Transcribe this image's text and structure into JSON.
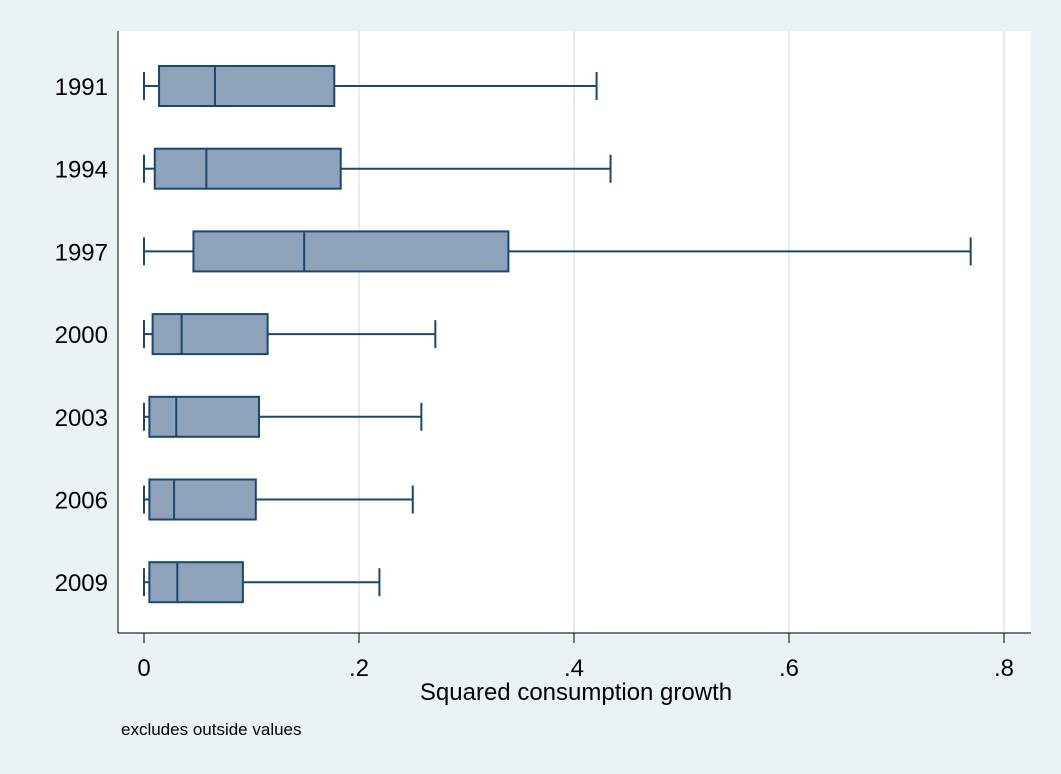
{
  "chart_data": {
    "type": "boxplot",
    "orientation": "horizontal",
    "xlabel": "Squared consumption growth",
    "note": "excludes outside values",
    "xlim": [
      0,
      0.8
    ],
    "x_ticks": [
      0,
      0.2,
      0.4,
      0.6,
      0.8
    ],
    "x_tick_labels": [
      "0",
      ".2",
      ".4",
      ".6",
      ".8"
    ],
    "grid": "vertical",
    "categories": [
      "1991",
      "1994",
      "1997",
      "2000",
      "2003",
      "2006",
      "2009"
    ],
    "boxes": [
      {
        "label": "1991",
        "whisker_low": 0.0,
        "q1": 0.014,
        "median": 0.066,
        "q3": 0.177,
        "whisker_high": 0.421
      },
      {
        "label": "1994",
        "whisker_low": 0.0,
        "q1": 0.01,
        "median": 0.058,
        "q3": 0.183,
        "whisker_high": 0.434
      },
      {
        "label": "1997",
        "whisker_low": 0.0,
        "q1": 0.046,
        "median": 0.149,
        "q3": 0.339,
        "whisker_high": 0.769
      },
      {
        "label": "2000",
        "whisker_low": 0.0,
        "q1": 0.008,
        "median": 0.035,
        "q3": 0.115,
        "whisker_high": 0.271
      },
      {
        "label": "2003",
        "whisker_low": 0.0,
        "q1": 0.005,
        "median": 0.03,
        "q3": 0.107,
        "whisker_high": 0.258
      },
      {
        "label": "2006",
        "whisker_low": 0.0,
        "q1": 0.005,
        "median": 0.028,
        "q3": 0.104,
        "whisker_high": 0.25
      },
      {
        "label": "2009",
        "whisker_low": 0.0,
        "q1": 0.005,
        "median": 0.031,
        "q3": 0.092,
        "whisker_high": 0.219
      }
    ],
    "colors": {
      "background": "#eaf2f3",
      "plot_area": "#ffffff",
      "gridline": "#e4eef0",
      "box_fill": "#8ea3ba",
      "box_stroke": "#1a476f"
    }
  }
}
